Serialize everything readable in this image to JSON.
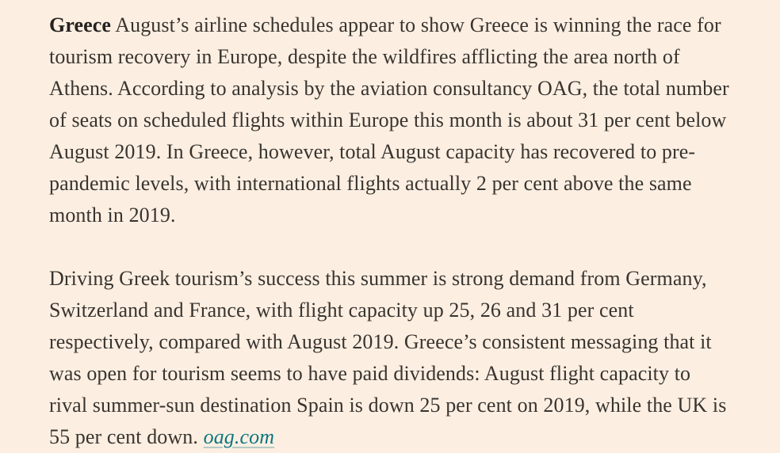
{
  "page": {
    "background_color": "#fcefe2",
    "text_color": "#39342f",
    "lead_color": "#262220",
    "link_color": "#0d7680"
  },
  "article": {
    "paragraph1": {
      "lead": "Greece",
      "text": " August’s airline schedules appear to show Greece is winning the race for tourism recovery in Europe, despite the wildfires afflicting the area north of Athens. According to analysis by the aviation consultancy OAG, the total number of seats on scheduled flights within Europe this month is about 31 per cent below August 2019. In Greece, however, total August capacity has recovered to pre-pandemic levels, with international flights actually 2 per cent above the same month in 2019."
    },
    "paragraph2": {
      "text": "Driving Greek tourism’s success this summer is strong demand from Germany, Switzerland and France, with flight capacity up 25, 26 and 31 per cent respectively, compared with August 2019. Greece’s consistent messaging that it was open for tourism seems to have paid dividends: August flight capacity to rival summer-sun destination Spain is down 25 per cent on 2019, while the UK is 55 per cent down. ",
      "link_label": "oag.com"
    }
  }
}
